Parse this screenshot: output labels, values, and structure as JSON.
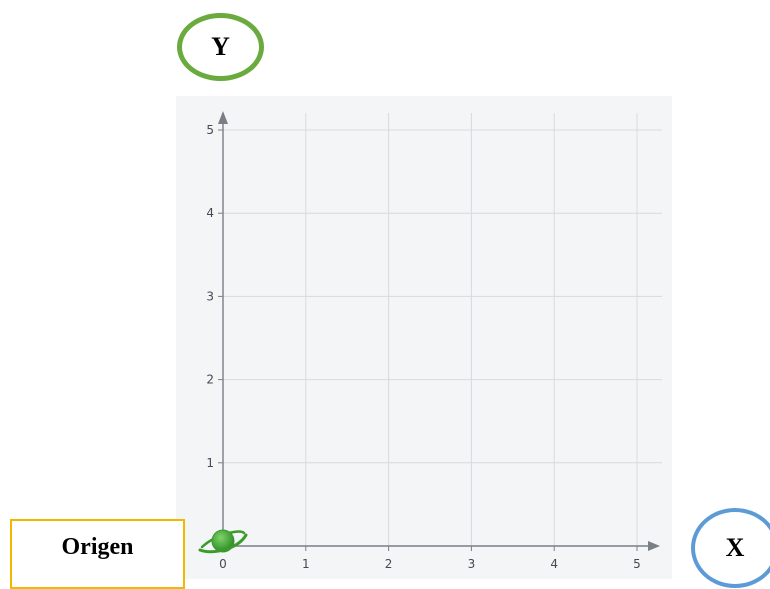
{
  "diagram": {
    "y_badge_label": "Y",
    "x_badge_label": "X",
    "origin_label": "Origen",
    "icon": "planet-icon",
    "colors": {
      "y_badge": "#6aaa3f",
      "x_badge": "#5c9bd5",
      "origin_box": "#f2b800",
      "planet": "#3a9a2a",
      "axis": "#7a7f86",
      "grid": "#d7dadd"
    }
  },
  "chart_data": {
    "type": "scatter",
    "x_ticks": [
      "0",
      "1",
      "2",
      "3",
      "4",
      "5"
    ],
    "y_ticks": [
      "1",
      "2",
      "3",
      "4",
      "5"
    ],
    "xlim": [
      0,
      5
    ],
    "ylim": [
      0,
      5
    ],
    "grid": true,
    "points": [
      {
        "x": 0,
        "y": 0,
        "marker": "planet-icon"
      }
    ]
  }
}
